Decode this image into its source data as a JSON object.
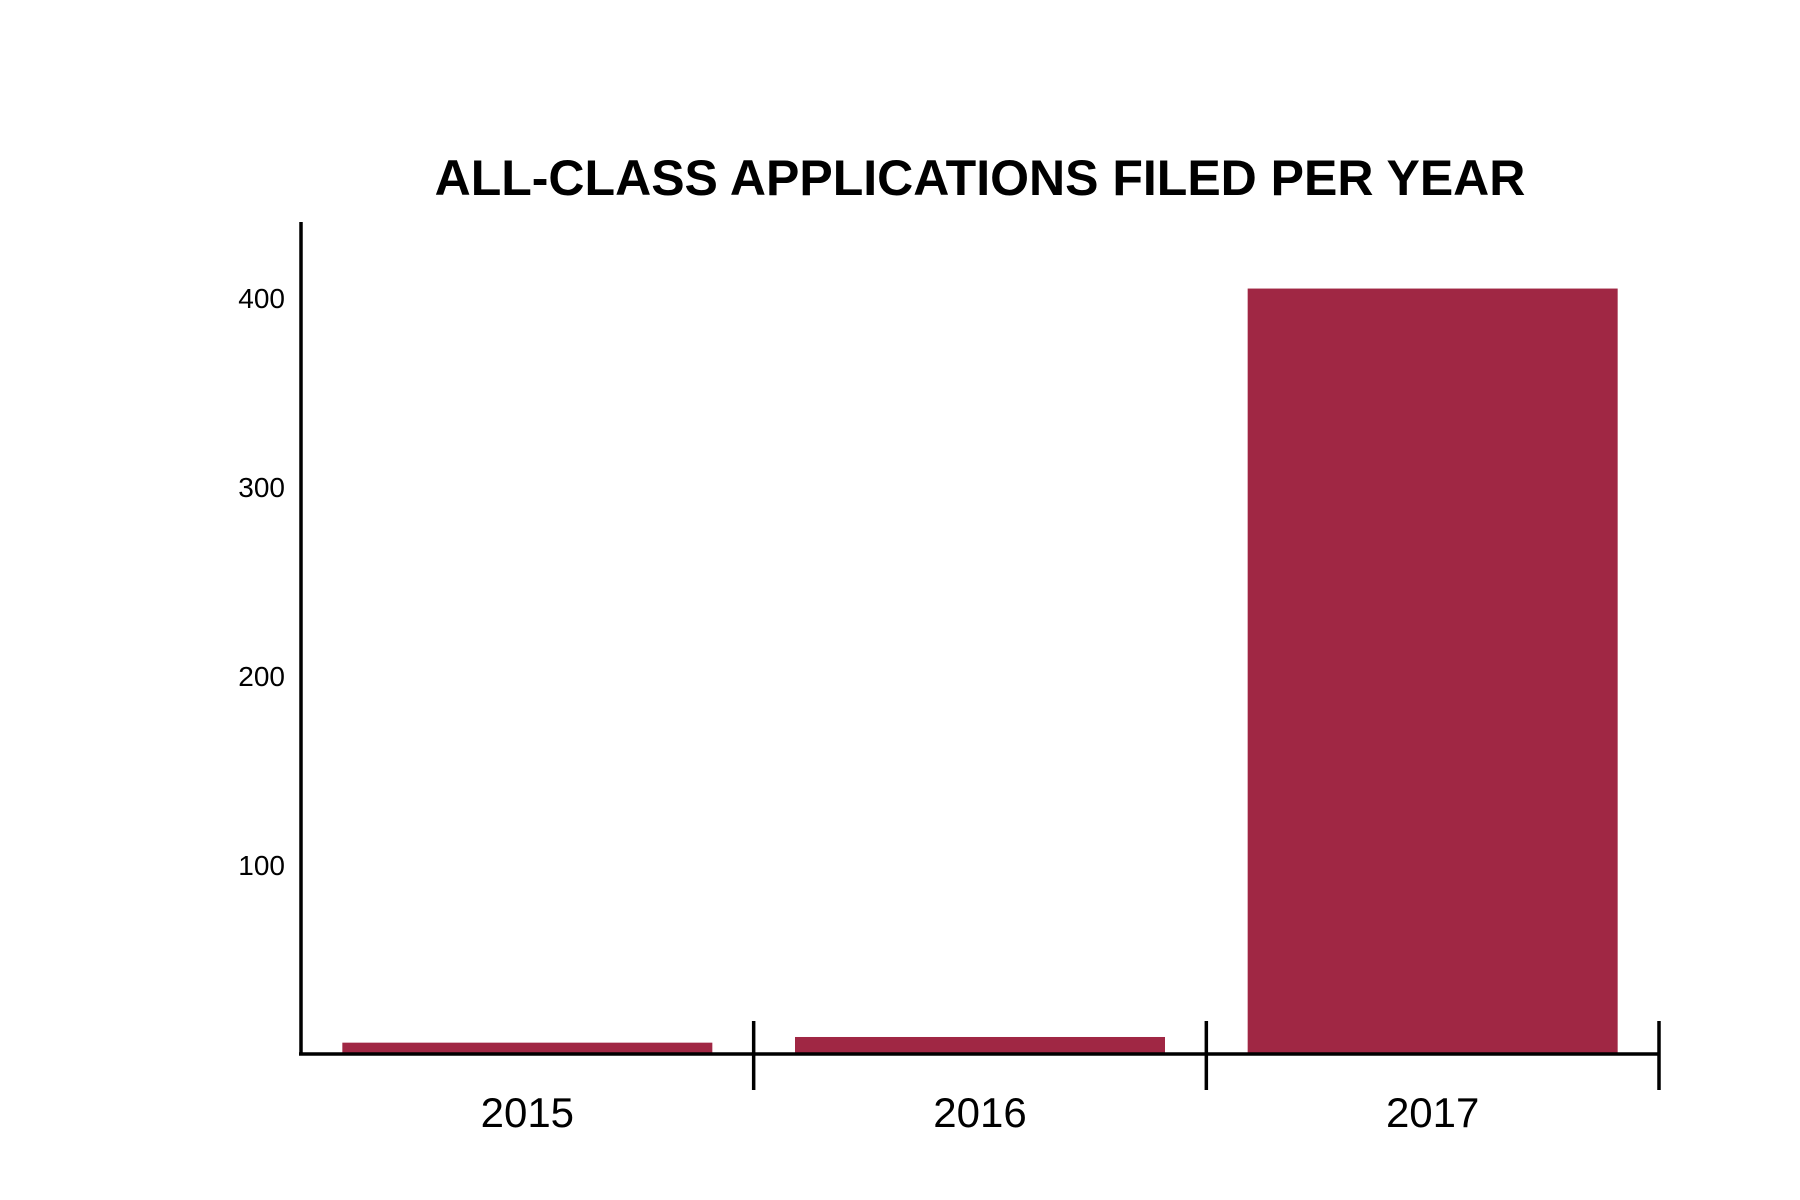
{
  "chart_data": {
    "type": "bar",
    "title": "ALL-CLASS APPLICATIONS FILED PER YEAR",
    "categories": [
      "2015",
      "2016",
      "2017"
    ],
    "values": [
      6,
      9,
      405
    ],
    "xlabel": "",
    "ylabel": "",
    "yticks": [
      100,
      200,
      300,
      400
    ],
    "ylim": [
      0,
      450
    ],
    "grid": false,
    "legend": "none",
    "bar_color": "#A02744"
  }
}
